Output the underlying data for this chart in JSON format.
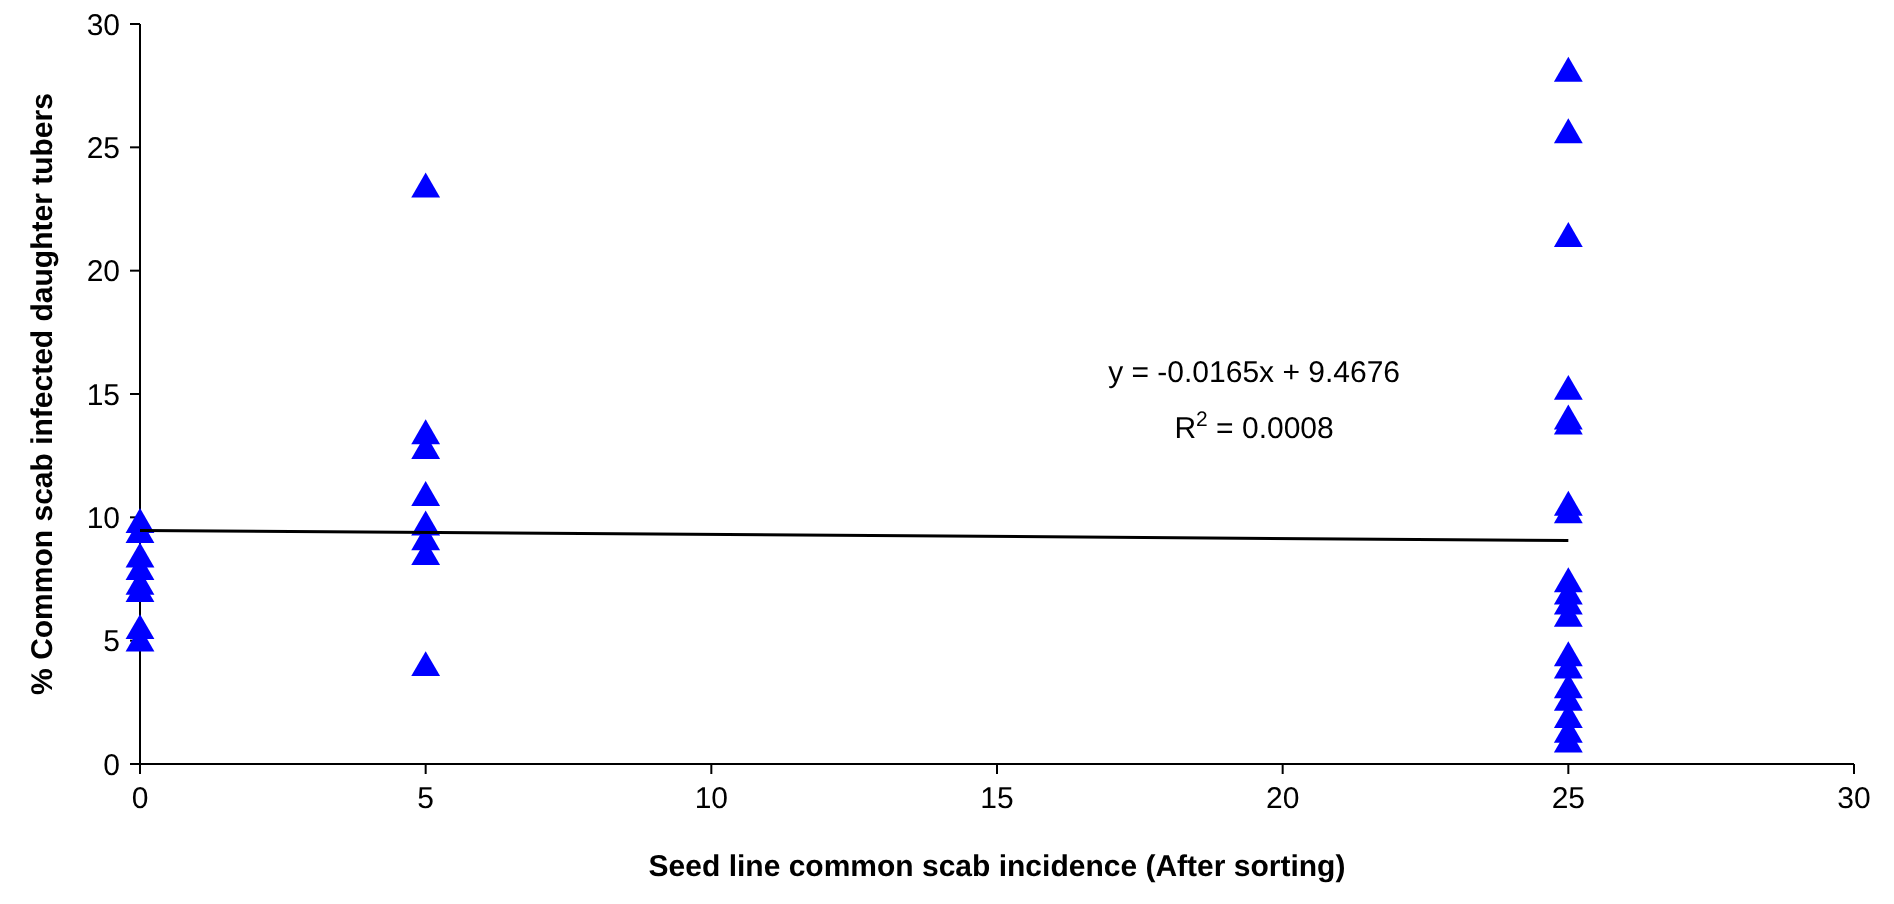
{
  "chart_data": {
    "type": "scatter",
    "xlabel": "Seed line common scab incidence (After sorting)",
    "ylabel": "% Common scab infected daughter tubers",
    "series": [
      {
        "color": "#0000ff",
        "marker": "triangle",
        "x": [
          0,
          0,
          0,
          0,
          0,
          0,
          0,
          0,
          5,
          5,
          5,
          5,
          5,
          5,
          5,
          5,
          25,
          25,
          25,
          25,
          25,
          25,
          25,
          25,
          25,
          25,
          25,
          25,
          25,
          25,
          25,
          25,
          25,
          25,
          25
        ],
        "values": [
          9.7,
          9.3,
          8.3,
          7.8,
          7.2,
          6.9,
          5.4,
          4.9,
          23.3,
          13.3,
          12.7,
          10.8,
          9.6,
          9.0,
          8.4,
          3.9,
          28.0,
          25.5,
          21.3,
          15.1,
          13.9,
          13.7,
          10.4,
          10.1,
          7.3,
          6.8,
          6.4,
          5.9,
          4.3,
          3.8,
          3.0,
          2.5,
          1.8,
          1.2,
          0.8
        ]
      },
      {
        "type": "line",
        "color": "#000000",
        "marker": "none",
        "x": [
          0,
          25
        ],
        "values": [
          9.47,
          9.06
        ]
      }
    ],
    "annotations": [
      "y = -0.0165x + 9.4676",
      "R$^{2}$ = 0.0008"
    ],
    "xlim": [
      0,
      30
    ],
    "xticks": [
      0,
      5,
      10,
      15,
      20,
      25,
      30
    ],
    "ylim": [
      0,
      30
    ],
    "yticks": [
      0,
      5,
      10,
      15,
      20,
      25,
      30
    ],
    "grid": false
  }
}
